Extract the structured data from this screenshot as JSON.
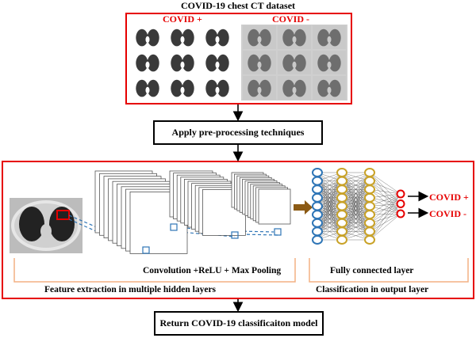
{
  "dataset": {
    "title": "COVID-19 chest CT dataset",
    "positive_label": "COVID +",
    "negative_label": "COVID -"
  },
  "steps": {
    "preprocess": "Apply pre-processing techniques",
    "final": "Return COVID-19 classificaiton model"
  },
  "model": {
    "conv_label": "Convolution +ReLU + Max Pooling",
    "fc_label": "Fully connected layer",
    "feature_label": "Feature extraction in multiple hidden layers",
    "classification_label": "Classification in output layer",
    "out_positive": "COVID +",
    "out_negative": "COVID -"
  },
  "colors": {
    "red_box": "#e60000",
    "orange_line": "#f4b183",
    "blue": "#2e75b6",
    "gold": "#c9a227",
    "arrow_brown": "#8b5a14"
  }
}
